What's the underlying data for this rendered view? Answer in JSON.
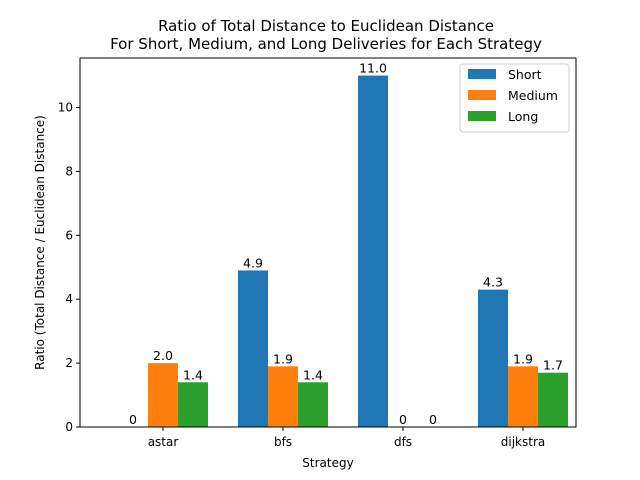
{
  "chart_data": {
    "type": "bar",
    "title_lines": [
      "Ratio of Total Distance to Euclidean Distance",
      "For Short, Medium, and Long Deliveries for Each Strategy"
    ],
    "xlabel": "Strategy",
    "ylabel": "Ratio (Total Distance / Euclidean Distance)",
    "categories": [
      "astar",
      "bfs",
      "dfs",
      "dijkstra"
    ],
    "ylim": [
      0,
      11.55
    ],
    "yticks": [
      0,
      2,
      4,
      6,
      8,
      10
    ],
    "series": [
      {
        "name": "Short",
        "color": "#1f77b4",
        "values": [
          0,
          4.9,
          11.0,
          4.3
        ],
        "labels": [
          "0",
          "4.9",
          "11.0",
          "4.3"
        ]
      },
      {
        "name": "Medium",
        "color": "#ff7f0e",
        "values": [
          2.0,
          1.9,
          0,
          1.9
        ],
        "labels": [
          "2.0",
          "1.9",
          "0",
          "1.9"
        ]
      },
      {
        "name": "Long",
        "color": "#2ca02c",
        "values": [
          1.4,
          1.4,
          0,
          1.7
        ],
        "labels": [
          "1.4",
          "1.4",
          "0",
          "1.7"
        ]
      }
    ],
    "legend_position": "top-right",
    "grid": false
  }
}
